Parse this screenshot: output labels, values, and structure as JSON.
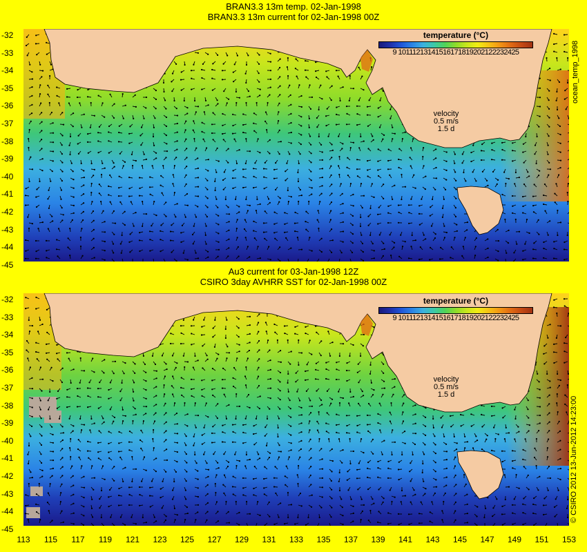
{
  "titles": {
    "top_line1": "BRAN3.3 13m temp. 02-Jan-1998",
    "top_line2": "BRAN3.3 13m current for 02-Jan-1998 00Z",
    "bottom_line1": "Au3 current for 03-Jan-1998 12Z",
    "bottom_line2": "CSIRO 3day AVHRR SST for 02-Jan-1998 00Z"
  },
  "y_ticks": [
    "-32",
    "-33",
    "-34",
    "-35",
    "-36",
    "-37",
    "-38",
    "-39",
    "-40",
    "-41",
    "-42",
    "-43",
    "-44",
    "-45"
  ],
  "x_ticks": [
    "113",
    "115",
    "117",
    "119",
    "121",
    "123",
    "125",
    "127",
    "129",
    "131",
    "133",
    "135",
    "137",
    "139",
    "141",
    "143",
    "145",
    "147",
    "149",
    "151",
    "153"
  ],
  "legend": {
    "title": "temperature (°C)",
    "ticks": "9 10111213141516171819202122232425",
    "colors": [
      "#1a1a7a",
      "#1f2fa8",
      "#1f55d8",
      "#2a83e6",
      "#3cb0e0",
      "#3cc9a8",
      "#4fd35a",
      "#8edc2a",
      "#c8e61c",
      "#f2ec14",
      "#f6c214",
      "#f29614",
      "#e06a14",
      "#c44a14",
      "#a03212"
    ]
  },
  "velocity": {
    "label": "velocity",
    "value": "0.5 m/s",
    "scale": "1.5 d"
  },
  "side_top": "ocean_temp_1998",
  "side_bottom": "© CSIRO 2012   13-Jun-2012 14:23:00",
  "colors": {
    "land": "#f5cba3",
    "page_bg": "#ffff00",
    "coast_contour": "#6fe6e6"
  }
}
